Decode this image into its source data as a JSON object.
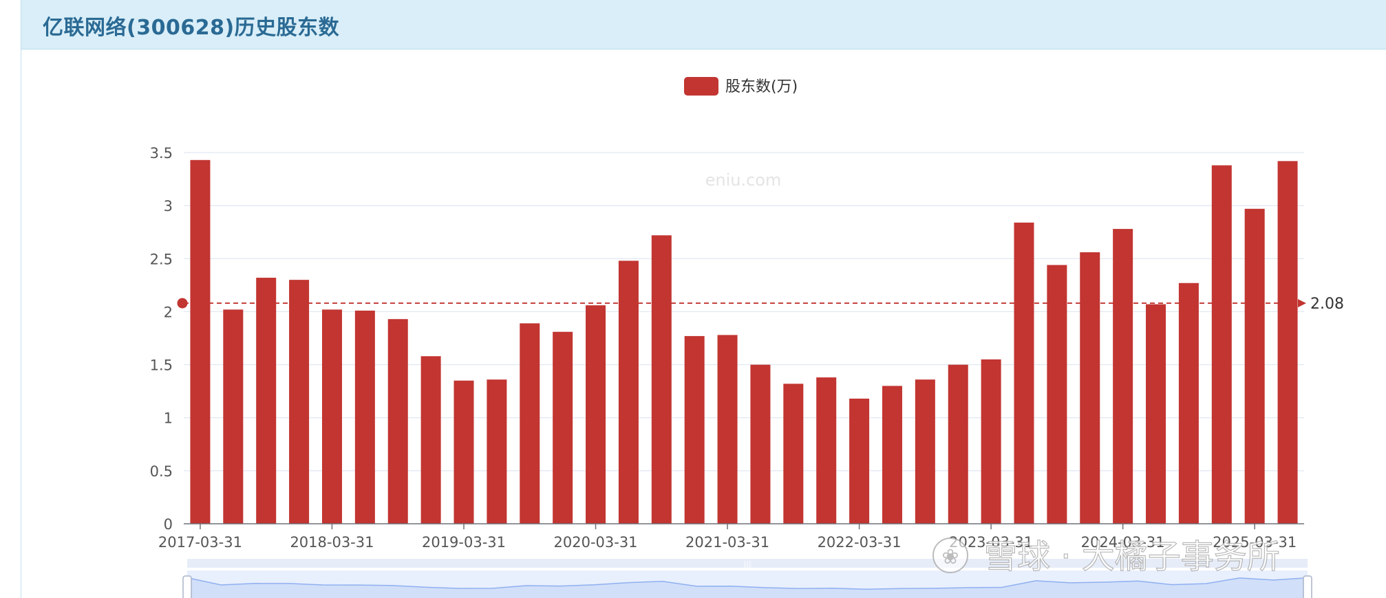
{
  "header": {
    "title": "亿联网络(300628)历史股东数"
  },
  "watermarks": {
    "site": "eniu.com",
    "snowball": "雪球 · 大橘子事务所"
  },
  "colors": {
    "bar": "#c23531",
    "header_bg": "#d9eef8",
    "title": "#2a6a94",
    "grid": "#e0e6f1",
    "axis": "#6e7079",
    "zoom_bg": "#e8effd",
    "zoom_line": "#8fb0f0"
  },
  "chart_data": {
    "type": "bar",
    "title": "",
    "xlabel": "",
    "ylabel": "",
    "legend": {
      "position": "top-center",
      "entries": [
        "股东数(万)"
      ]
    },
    "grid": true,
    "ylim": [
      0,
      3.5
    ],
    "y_ticks": [
      "0",
      "0.5",
      "1",
      "1.5",
      "2",
      "2.5",
      "3",
      "3.5"
    ],
    "x_tick_labels": [
      "2017-03-31",
      "2018-03-31",
      "2019-03-31",
      "2020-03-31",
      "2021-03-31",
      "2022-03-31",
      "2023-03-31",
      "2024-03-31",
      "2025-03-31"
    ],
    "x_tick_every": 4,
    "series": [
      {
        "name": "股东数(万)",
        "values": [
          3.43,
          2.02,
          2.32,
          2.3,
          2.02,
          2.01,
          1.93,
          1.58,
          1.35,
          1.36,
          1.89,
          1.81,
          2.06,
          2.48,
          2.72,
          1.77,
          1.78,
          1.5,
          1.32,
          1.38,
          1.18,
          1.3,
          1.36,
          1.5,
          1.55,
          2.84,
          2.44,
          2.56,
          2.78,
          2.07,
          2.27,
          3.38,
          2.97,
          3.42
        ]
      }
    ],
    "average_line": {
      "value": 2.08,
      "label": "2.08"
    }
  }
}
